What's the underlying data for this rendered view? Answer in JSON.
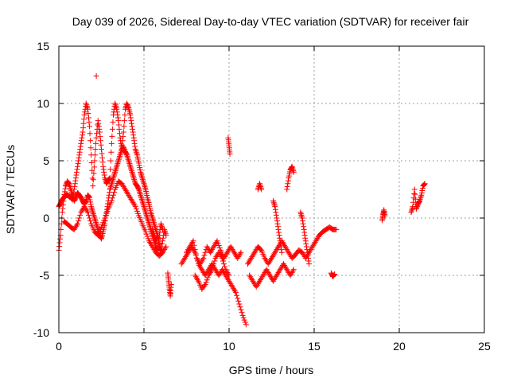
{
  "chart_data": {
    "type": "scatter",
    "title": "Day 039 of 2026, Sidereal Day-to-day VTEC variation (SDTVAR) for receiver fair",
    "xlabel": "GPS time / hours",
    "ylabel": "SDTVAR / TECUs",
    "xlim": [
      0,
      25
    ],
    "ylim": [
      -10,
      15
    ],
    "xticks": [
      0,
      5,
      10,
      15,
      20,
      25
    ],
    "yticks": [
      -10,
      -5,
      0,
      5,
      10,
      15
    ],
    "xtick_labels": [
      "0",
      "5",
      "10",
      "15",
      "20",
      "25"
    ],
    "ytick_labels": [
      "-10",
      "-5",
      "0",
      "5",
      "10",
      "15"
    ],
    "grid": true,
    "marker": "+",
    "color": "#ff0000",
    "series": [
      {
        "name": "SDTVAR",
        "segments": [
          {
            "x": [
              0.0,
              0.1,
              0.2,
              0.3,
              0.4,
              0.5,
              0.6,
              0.7,
              0.8,
              0.9,
              1.0,
              1.1,
              1.2,
              1.3,
              1.4,
              1.5,
              1.6,
              1.7,
              1.8,
              1.9,
              2.0,
              2.1,
              2.2,
              2.3,
              2.4,
              2.5,
              2.6,
              2.7,
              2.8,
              2.9,
              3.0,
              3.1,
              3.2,
              3.3,
              3.4,
              3.5,
              3.6,
              3.7,
              3.8,
              3.9,
              4.0,
              4.1,
              4.2,
              4.3,
              4.4,
              4.5,
              4.6,
              4.7,
              4.8,
              4.9,
              5.0,
              5.1,
              5.2,
              5.3,
              5.4,
              5.5,
              5.6,
              5.7,
              5.8,
              5.9,
              6.0,
              6.1
            ],
            "y": [
              -2.8,
              -1.5,
              0.5,
              1.8,
              2.8,
              3.2,
              3.0,
              2.5,
              2.0,
              1.5,
              1.8,
              2.2,
              2.0,
              1.8,
              1.5,
              1.2,
              1.5,
              2.0,
              1.8,
              1.0,
              0.5,
              0.0,
              -0.5,
              -1.0,
              -1.5,
              -1.8,
              -1.2,
              -0.5,
              0.5,
              1.5,
              2.5,
              3.0,
              3.5,
              4.0,
              4.5,
              5.0,
              5.5,
              6.0,
              6.2,
              5.8,
              5.5,
              5.0,
              4.5,
              4.0,
              3.5,
              3.0,
              2.8,
              2.5,
              2.0,
              1.5,
              1.0,
              0.5,
              0.0,
              -0.5,
              -1.0,
              -1.5,
              -2.0,
              -2.5,
              -2.8,
              -1.5,
              -0.5,
              -1.0
            ]
          },
          {
            "x": [
              0.0,
              0.1,
              0.2,
              0.3,
              0.4,
              0.5,
              0.6,
              0.7,
              0.8,
              0.9,
              1.0,
              1.1,
              1.2,
              1.3,
              1.4,
              1.5,
              1.6,
              1.7,
              1.8,
              1.9,
              2.0,
              2.1,
              2.2,
              2.3,
              2.4,
              2.5,
              2.6,
              2.7,
              2.8,
              2.9,
              3.0,
              3.1,
              3.2,
              3.3,
              3.4,
              3.5,
              3.6,
              3.7,
              3.8,
              3.9,
              4.0,
              4.1,
              4.2,
              4.3,
              4.4,
              4.5,
              4.6,
              4.7,
              4.8,
              4.9,
              5.0,
              5.1,
              5.2,
              5.3,
              5.4,
              5.5,
              5.6,
              5.7,
              5.8,
              5.9,
              6.0
            ],
            "y": [
              1.0,
              1.3,
              1.6,
              1.8,
              2.0,
              2.0,
              1.9,
              1.8,
              1.6,
              2.5,
              3.5,
              4.5,
              5.5,
              6.5,
              7.5,
              9.0,
              10.0,
              9.5,
              8.0,
              5.5,
              2.8,
              5.0,
              7.0,
              8.5,
              7.5,
              6.0,
              4.5,
              3.5,
              3.0,
              3.3,
              3.5,
              6.5,
              9.0,
              10.0,
              9.5,
              8.5,
              7.0,
              6.0,
              7.5,
              9.5,
              10.0,
              9.6,
              9.0,
              8.0,
              7.0,
              6.0,
              5.5,
              4.8,
              4.0,
              3.5,
              3.0,
              2.5,
              1.8,
              1.2,
              0.5,
              0.0,
              -0.5,
              -1.0,
              -1.5,
              -2.2,
              -2.8
            ]
          },
          {
            "x": [
              0.3,
              0.5,
              0.7,
              0.9,
              1.1,
              1.3,
              1.5,
              1.7,
              1.9,
              2.1,
              2.3,
              2.5,
              2.7,
              2.9,
              3.1,
              3.3,
              3.5,
              3.7,
              3.9,
              4.1,
              4.3,
              4.5,
              4.7,
              4.9,
              5.1,
              5.3,
              5.5,
              5.7,
              5.9,
              6.1,
              6.3
            ],
            "y": [
              -0.3,
              -0.5,
              -0.8,
              -1.0,
              -0.5,
              0.5,
              1.0,
              0.5,
              -0.5,
              -1.2,
              -1.5,
              -0.8,
              0.0,
              0.8,
              1.5,
              2.5,
              3.2,
              3.0,
              2.5,
              2.0,
              1.5,
              1.0,
              0.2,
              -0.5,
              -1.2,
              -2.0,
              -2.5,
              -3.0,
              -3.3,
              -3.0,
              -2.5
            ]
          },
          {
            "x": [
              5.5,
              5.6,
              5.7,
              5.8,
              5.9,
              6.0,
              6.1,
              6.2,
              6.3
            ],
            "y": [
              -1.0,
              -1.5,
              -2.0,
              -1.5,
              -2.5,
              -3.0,
              -2.0,
              -1.0,
              -1.5
            ]
          },
          {
            "x": [
              6.4,
              6.45,
              6.5,
              6.55,
              6.6
            ],
            "y": [
              -4.8,
              -5.5,
              -6.2,
              -6.8,
              -5.8
            ]
          },
          {
            "x": [
              7.2,
              7.4,
              7.6,
              7.8,
              8.0,
              8.2,
              8.4,
              8.6,
              8.8,
              9.0,
              9.2,
              9.4,
              9.6,
              9.8,
              10.0,
              10.2,
              10.4,
              10.6,
              10.8,
              11.0
            ],
            "y": [
              -4.0,
              -3.5,
              -3.0,
              -2.5,
              -3.0,
              -4.0,
              -4.5,
              -5.0,
              -4.5,
              -4.0,
              -4.5,
              -5.0,
              -4.5,
              -5.0,
              -5.5,
              -6.0,
              -6.5,
              -7.5,
              -8.5,
              -9.3
            ]
          },
          {
            "x": [
              7.5,
              7.7,
              7.9,
              8.1,
              8.3,
              8.5,
              8.7,
              8.9,
              9.1,
              9.3,
              9.5,
              9.7,
              9.9,
              10.1,
              10.3,
              10.5,
              10.7
            ],
            "y": [
              -3.0,
              -2.5,
              -2.0,
              -3.5,
              -4.0,
              -3.5,
              -2.5,
              -3.0,
              -2.5,
              -2.0,
              -2.8,
              -3.5,
              -3.0,
              -2.5,
              -3.0,
              -3.5,
              -3.0
            ]
          },
          {
            "x": [
              8.0,
              8.2,
              8.4,
              8.6,
              8.8,
              9.0,
              9.2,
              9.4,
              9.6,
              9.8,
              10.0
            ],
            "y": [
              -5.0,
              -5.5,
              -6.2,
              -5.8,
              -5.0,
              -4.5,
              -3.5,
              -3.0,
              -3.5,
              -4.5,
              -5.0
            ]
          },
          {
            "x": [
              9.95,
              10.0,
              10.05
            ],
            "y": [
              7.0,
              6.3,
              5.6
            ]
          },
          {
            "x": [
              11.1,
              11.3,
              11.5,
              11.7,
              11.9,
              12.1,
              12.3,
              12.5,
              12.7,
              12.9,
              13.1,
              13.3,
              13.5,
              13.7,
              13.9,
              14.1,
              14.3,
              14.5,
              14.7,
              14.9,
              15.1,
              15.3,
              15.5,
              15.7,
              15.9,
              16.1,
              16.3
            ],
            "y": [
              -4.0,
              -3.5,
              -3.0,
              -2.5,
              -2.8,
              -3.5,
              -4.0,
              -3.5,
              -3.0,
              -2.5,
              -2.0,
              -2.5,
              -3.0,
              -3.5,
              -3.2,
              -2.8,
              -3.0,
              -3.5,
              -3.0,
              -2.5,
              -2.0,
              -1.5,
              -1.2,
              -1.0,
              -0.8,
              -1.0,
              -1.0
            ]
          },
          {
            "x": [
              11.2,
              11.4,
              11.6,
              11.8,
              12.0,
              12.2,
              12.4,
              12.6,
              12.8,
              13.0,
              13.2,
              13.4,
              13.6,
              13.8
            ],
            "y": [
              -5.0,
              -5.5,
              -6.0,
              -5.5,
              -5.0,
              -4.5,
              -5.0,
              -5.5,
              -5.0,
              -4.5,
              -4.0,
              -4.5,
              -5.0,
              -4.5
            ]
          },
          {
            "x": [
              11.7,
              11.8,
              11.9
            ],
            "y": [
              2.5,
              3.0,
              2.5
            ]
          },
          {
            "x": [
              12.6,
              12.7,
              12.8,
              12.9,
              13.0,
              13.1
            ],
            "y": [
              1.5,
              1.0,
              0.0,
              -1.0,
              -2.0,
              -3.0
            ]
          },
          {
            "x": [
              13.4,
              13.5,
              13.6,
              13.7,
              13.8
            ],
            "y": [
              2.5,
              3.5,
              4.2,
              4.5,
              4.0
            ]
          },
          {
            "x": [
              14.2,
              14.3,
              14.4,
              14.5,
              14.6,
              14.7
            ],
            "y": [
              0.5,
              0.0,
              -1.0,
              -2.0,
              -3.0,
              -4.0
            ]
          },
          {
            "x": [
              16.0,
              16.1,
              16.2
            ],
            "y": [
              -4.8,
              -5.1,
              -4.9
            ]
          },
          {
            "x": [
              19.0,
              19.05,
              19.1,
              19.15
            ],
            "y": [
              -0.2,
              0.3,
              0.7,
              0.2
            ]
          },
          {
            "x": [
              20.7,
              20.8,
              20.9,
              21.0,
              21.1,
              21.2,
              21.3,
              21.4,
              21.5
            ],
            "y": [
              0.5,
              1.0,
              2.5,
              0.8,
              1.2,
              1.5,
              2.0,
              2.8,
              3.0
            ]
          },
          {
            "x": [
              2.2
            ],
            "y": [
              12.4
            ]
          }
        ]
      }
    ]
  }
}
